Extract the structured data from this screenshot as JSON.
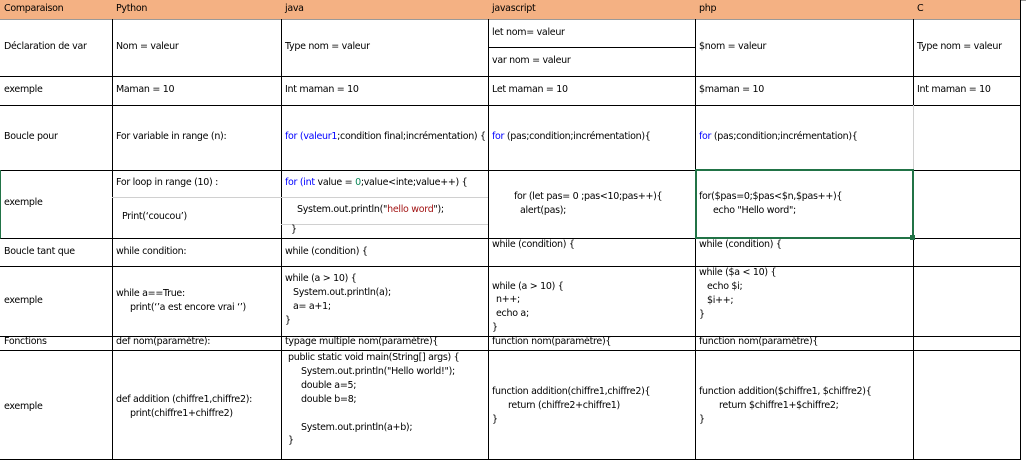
{
  "colors": {
    "header_bg": "#F4B183",
    "keyword": "#0000FF",
    "number": "#098658",
    "string": "#A31515",
    "selection": "#217346"
  },
  "header": [
    "Comparaison",
    "Python",
    "java",
    "javascript",
    "php",
    "C"
  ],
  "decl": {
    "label": "Déclaration de var",
    "python": "Nom = valeur",
    "java": "Type nom = valeur",
    "js1": "let nom= valeur",
    "js2": "var nom = valeur",
    "php": "$nom = valeur",
    "c": "Type nom = valeur"
  },
  "ex1": {
    "label": "exemple",
    "python": "Maman = 10",
    "java": "Int maman = 10",
    "js": "Let maman = 10",
    "php": "$maman = 10",
    "c": "Int maman = 10"
  },
  "for": {
    "label": "Boucle pour",
    "python": "For variable in range (n):",
    "java_kw": "for",
    "java_kw2": "(valeur1",
    "java_rest": ";condition final;incrémentation) {",
    "js_kw": "for",
    "js_rest": " (pas;condition;incrémentation){",
    "php_kw": "for",
    "php_rest": " (pas;condition;incrémentation){"
  },
  "ex2": {
    "label": "exemple",
    "python": [
      "For loop in range (10) :",
      "Print(‘coucou’)"
    ],
    "java_kw": "for (int",
    "java_a": " value = ",
    "java_num": "0",
    "java_b": ";value<inte;value++) {",
    "java_l2a": "System.out.println(\"",
    "java_str": "hello word",
    "java_l2b": "\");",
    "java_l3": "}",
    "js": [
      "for (let pas= 0 ;pas<10;pas++){",
      "alert(pas);"
    ],
    "php": [
      "for($pas=0;$pas<$n,$pas++){",
      "echo \"Hello word\";"
    ]
  },
  "while": {
    "label": "Boucle tant que",
    "python": "while condition:",
    "java": "while (condition) {",
    "js": "while (condition) {",
    "php": "while (condition) {"
  },
  "ex3": {
    "label": "exemple",
    "python": [
      "while a==True:",
      "print(‘’a est encore vrai ‘’)"
    ],
    "java": [
      "while (a > 10) {",
      "System.out.println(a);",
      "a= a+1;",
      "}"
    ],
    "js": [
      "while (a > 10) {",
      "n++;",
      "echo a;",
      "}"
    ],
    "php": [
      "while ($a < 10) {",
      "echo $i;",
      "$i++;",
      "}"
    ]
  },
  "func": {
    "label": "Fonctions",
    "python": "def nom(paramètre):",
    "java": "typage multiple nom(paramètre){",
    "js": "function nom(paramètre){",
    "php": "function nom(paramètre){"
  },
  "ex4": {
    "label": "exemple",
    "python": [
      "def addition (chiffre1,chiffre2):",
      "print(chiffre1+chiffre2)"
    ],
    "java": [
      "public static void main(String[] args) {",
      "System.out.println(\"Hello world!\");",
      "double a=5;",
      "double b=8;",
      "System.out.println(a+b);",
      "}"
    ],
    "js": [
      "function addition(chiffre1,chiffre2){",
      "return (chiffre2+chiffre1)",
      "}"
    ],
    "php": [
      "function addition($chiffre1, $chiffre2){",
      "return $chiffre1+$chiffre2;",
      "}"
    ]
  }
}
